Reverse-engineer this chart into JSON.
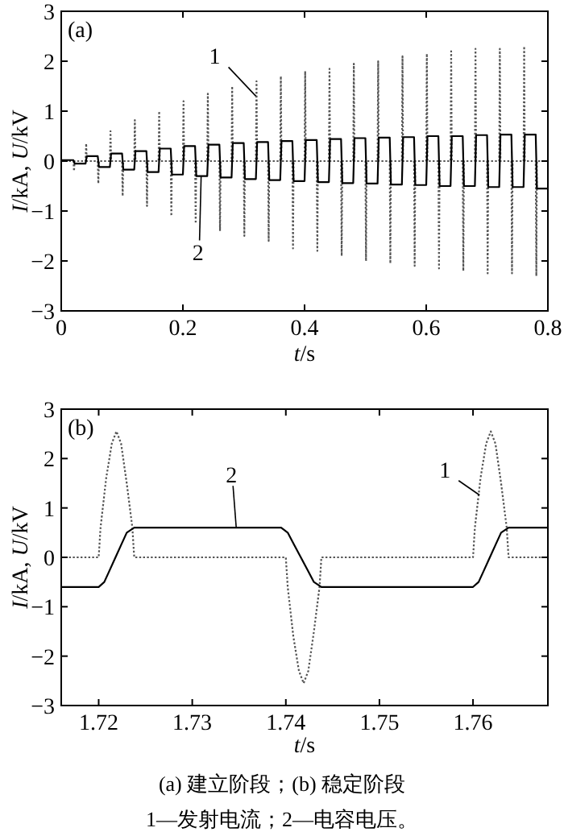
{
  "chart_data": [
    {
      "type": "line",
      "title": "(a)",
      "xlabel": "t/s",
      "ylabel": "I/kA, U/kV",
      "xlim": [
        0,
        0.8
      ],
      "ylim": [
        -3,
        3
      ],
      "xticks": [
        0,
        0.2,
        0.4,
        0.6,
        0.8
      ],
      "yticks": [
        -3,
        -2,
        -1,
        0,
        1,
        2,
        3
      ],
      "series": [
        {
          "color": "#555555",
          "line_style": "dotted",
          "x": [
            0,
            0.02,
            0.021,
            0.022,
            0.04,
            0.041,
            0.042,
            0.06,
            0.061,
            0.062,
            0.08,
            0.081,
            0.082,
            0.1,
            0.101,
            0.102,
            0.12,
            0.121,
            0.122,
            0.14,
            0.141,
            0.142,
            0.16,
            0.161,
            0.162,
            0.18,
            0.181,
            0.182,
            0.2,
            0.201,
            0.202,
            0.22,
            0.221,
            0.222,
            0.24,
            0.241,
            0.242,
            0.26,
            0.261,
            0.262,
            0.28,
            0.281,
            0.282,
            0.3,
            0.301,
            0.302,
            0.32,
            0.321,
            0.322,
            0.34,
            0.341,
            0.342,
            0.36,
            0.361,
            0.362,
            0.38,
            0.381,
            0.382,
            0.4,
            0.401,
            0.402,
            0.42,
            0.421,
            0.422,
            0.44,
            0.441,
            0.442,
            0.46,
            0.461,
            0.462,
            0.48,
            0.481,
            0.482,
            0.5,
            0.501,
            0.502,
            0.52,
            0.521,
            0.522,
            0.54,
            0.541,
            0.542,
            0.56,
            0.561,
            0.562,
            0.58,
            0.581,
            0.582,
            0.6,
            0.601,
            0.602,
            0.62,
            0.621,
            0.622,
            0.64,
            0.641,
            0.642,
            0.66,
            0.661,
            0.662,
            0.68,
            0.681,
            0.682,
            0.7,
            0.701,
            0.702,
            0.72,
            0.721,
            0.722,
            0.74,
            0.741,
            0.742,
            0.76,
            0.761,
            0.762,
            0.78,
            0.781,
            0.782,
            0.8
          ],
          "values": [
            0,
            0,
            -0.2,
            0,
            0,
            0.35,
            0,
            0,
            -0.45,
            0,
            0,
            0.6,
            0,
            0,
            -0.7,
            0,
            0,
            0.82,
            0,
            0,
            -0.9,
            0,
            0,
            1.0,
            0,
            0,
            -1.1,
            0,
            0,
            1.2,
            0,
            0,
            -1.25,
            0,
            0,
            1.35,
            0,
            0,
            -1.4,
            0,
            0,
            1.5,
            0,
            0,
            -1.5,
            0,
            0,
            1.6,
            0,
            0,
            -1.6,
            0,
            0,
            1.7,
            0,
            0,
            -1.75,
            0,
            0,
            1.8,
            0,
            0,
            -1.8,
            0,
            0,
            1.85,
            0,
            0,
            -1.9,
            0,
            0,
            1.95,
            0,
            0,
            -2.0,
            0,
            0,
            2.0,
            0,
            0,
            -2.05,
            0,
            0,
            2.1,
            0,
            0,
            -2.1,
            0,
            0,
            2.15,
            0,
            0,
            -2.15,
            0,
            0,
            2.2,
            0,
            0,
            -2.2,
            0,
            0,
            2.25,
            0,
            0,
            -2.25,
            0,
            0,
            2.25,
            0,
            0,
            -2.25,
            0,
            0,
            2.3,
            0,
            0,
            -2.3,
            0,
            0
          ]
        },
        {
          "color": "#000000",
          "line_style": "solid",
          "x": [
            0,
            0.02,
            0.022,
            0.04,
            0.042,
            0.06,
            0.062,
            0.08,
            0.082,
            0.1,
            0.102,
            0.12,
            0.122,
            0.14,
            0.142,
            0.16,
            0.162,
            0.18,
            0.182,
            0.2,
            0.202,
            0.22,
            0.222,
            0.24,
            0.242,
            0.26,
            0.262,
            0.28,
            0.282,
            0.3,
            0.302,
            0.32,
            0.322,
            0.34,
            0.342,
            0.36,
            0.362,
            0.38,
            0.382,
            0.4,
            0.402,
            0.42,
            0.422,
            0.44,
            0.442,
            0.46,
            0.462,
            0.48,
            0.482,
            0.5,
            0.502,
            0.52,
            0.522,
            0.54,
            0.542,
            0.56,
            0.562,
            0.58,
            0.582,
            0.6,
            0.602,
            0.62,
            0.622,
            0.64,
            0.642,
            0.66,
            0.662,
            0.68,
            0.682,
            0.7,
            0.702,
            0.72,
            0.722,
            0.74,
            0.742,
            0.76,
            0.762,
            0.78,
            0.782,
            0.8
          ],
          "values": [
            0.02,
            0.02,
            -0.05,
            -0.05,
            0.1,
            0.1,
            -0.12,
            -0.12,
            0.15,
            0.15,
            -0.17,
            -0.17,
            0.2,
            0.2,
            -0.22,
            -0.22,
            0.25,
            0.25,
            -0.27,
            -0.27,
            0.3,
            0.3,
            -0.3,
            -0.3,
            0.33,
            0.33,
            -0.33,
            -0.33,
            0.36,
            0.36,
            -0.36,
            -0.36,
            0.38,
            0.38,
            -0.38,
            -0.38,
            0.4,
            0.4,
            -0.4,
            -0.4,
            0.42,
            0.42,
            -0.42,
            -0.42,
            0.44,
            0.44,
            -0.44,
            -0.44,
            0.46,
            0.46,
            -0.45,
            -0.45,
            0.47,
            0.47,
            -0.47,
            -0.47,
            0.48,
            0.48,
            -0.48,
            -0.48,
            0.5,
            0.5,
            -0.5,
            -0.5,
            0.5,
            0.5,
            -0.5,
            -0.5,
            0.52,
            0.52,
            -0.52,
            -0.52,
            0.53,
            0.53,
            -0.52,
            -0.52,
            0.53,
            0.53,
            -0.55,
            -0.55
          ]
        }
      ],
      "annotations": [
        {
          "text": "1",
          "x": 0.32,
          "y": 1.3
        },
        {
          "text": "2",
          "x": 0.23,
          "y": -0.3
        }
      ]
    },
    {
      "type": "line",
      "title": "(b)",
      "xlabel": "t/s",
      "ylabel": "I/kA, U/kV",
      "xlim": [
        1.716,
        1.768
      ],
      "ylim": [
        -3,
        3
      ],
      "xticks": [
        1.72,
        1.73,
        1.74,
        1.75,
        1.76
      ],
      "yticks": [
        -3,
        -2,
        -1,
        0,
        1,
        2,
        3
      ],
      "series": [
        {
          "color": "#555555",
          "line_style": "dotted",
          "x": [
            1.716,
            1.72,
            1.7202,
            1.7208,
            1.7214,
            1.7219,
            1.7224,
            1.723,
            1.7236,
            1.7238,
            1.74,
            1.7402,
            1.7408,
            1.7414,
            1.7419,
            1.7424,
            1.743,
            1.7436,
            1.7438,
            1.76,
            1.7602,
            1.7608,
            1.7614,
            1.7619,
            1.7624,
            1.763,
            1.7636,
            1.7638,
            1.768
          ],
          "values": [
            0,
            0,
            0.6,
            1.6,
            2.3,
            2.55,
            2.3,
            1.5,
            0.6,
            0,
            0,
            -0.6,
            -1.6,
            -2.3,
            -2.55,
            -2.3,
            -1.5,
            -0.6,
            0,
            0,
            0.6,
            1.6,
            2.3,
            2.55,
            2.3,
            1.5,
            0.6,
            0,
            0
          ]
        },
        {
          "color": "#000000",
          "line_style": "solid",
          "x": [
            1.716,
            1.72,
            1.7206,
            1.7212,
            1.7218,
            1.7224,
            1.723,
            1.7238,
            1.7395,
            1.7402,
            1.7409,
            1.7416,
            1.7423,
            1.743,
            1.7438,
            1.76,
            1.7606,
            1.7612,
            1.7618,
            1.7624,
            1.763,
            1.7638,
            1.768
          ],
          "values": [
            -0.6,
            -0.6,
            -0.5,
            -0.25,
            0,
            0.25,
            0.5,
            0.6,
            0.6,
            0.5,
            0.25,
            0,
            -0.25,
            -0.5,
            -0.6,
            -0.6,
            -0.5,
            -0.25,
            0,
            0.25,
            0.5,
            0.6,
            0.6
          ]
        }
      ],
      "annotations": [
        {
          "text": "2",
          "x": 1.7347,
          "y": 0.6
        },
        {
          "text": "1",
          "x": 1.7607,
          "y": 1.26
        },
        "(a) 建立阶段；(b) 稳定阶段",
        "1—发射电流；2—电容电压。"
      ]
    }
  ]
}
